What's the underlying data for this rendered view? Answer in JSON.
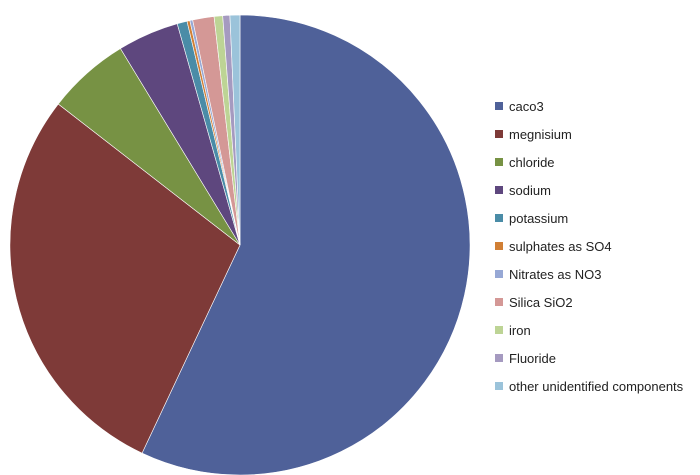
{
  "chart_data": {
    "type": "pie",
    "title": "",
    "legend_position": "right",
    "categories": [
      "caco3",
      "megnisium",
      "chloride",
      "sodium",
      "potassium",
      "sulphates as SO4",
      "Nitrates as NO3",
      "Silica SiO2",
      "iron",
      "Fluoride",
      "other unidentified components"
    ],
    "values": [
      57.0,
      28.5,
      5.8,
      4.3,
      0.7,
      0.2,
      0.2,
      1.5,
      0.6,
      0.5,
      0.7
    ],
    "colors": [
      "#4F6199",
      "#7E3A38",
      "#779244",
      "#5E477E",
      "#4A8CA7",
      "#D17F35",
      "#97A8D5",
      "#D49896",
      "#BDD495",
      "#A59AC0",
      "#9BC3DA"
    ]
  }
}
